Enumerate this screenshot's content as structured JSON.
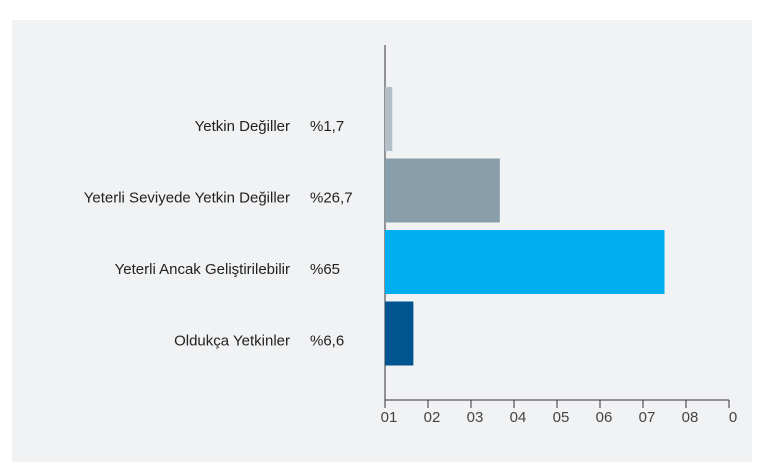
{
  "chart_data": {
    "type": "bar",
    "orientation": "horizontal",
    "categories": [
      "Yetkin Değiller",
      "Yeterli Seviyede Yetkin Değiller",
      "Yeterli Ancak Geliştirilebilir",
      "Oldukça Yetkinler"
    ],
    "values": [
      1.7,
      26.7,
      65,
      6.6
    ],
    "value_labels": [
      "%1,7",
      "%26,7",
      "%65",
      "%6,6"
    ],
    "colors": [
      "#b2bec8",
      "#889eab",
      "#00adef",
      "#00548f"
    ],
    "xlim": [
      0,
      80
    ],
    "xticks": [
      {
        "value": 0,
        "label": "01"
      },
      {
        "value": 10,
        "label": "02"
      },
      {
        "value": 20,
        "label": "03"
      },
      {
        "value": 30,
        "label": "04"
      },
      {
        "value": 40,
        "label": "05"
      },
      {
        "value": 50,
        "label": "06"
      },
      {
        "value": 60,
        "label": "07"
      },
      {
        "value": 70,
        "label": "08"
      },
      {
        "value": 80,
        "label": "0"
      }
    ],
    "grid": false
  }
}
